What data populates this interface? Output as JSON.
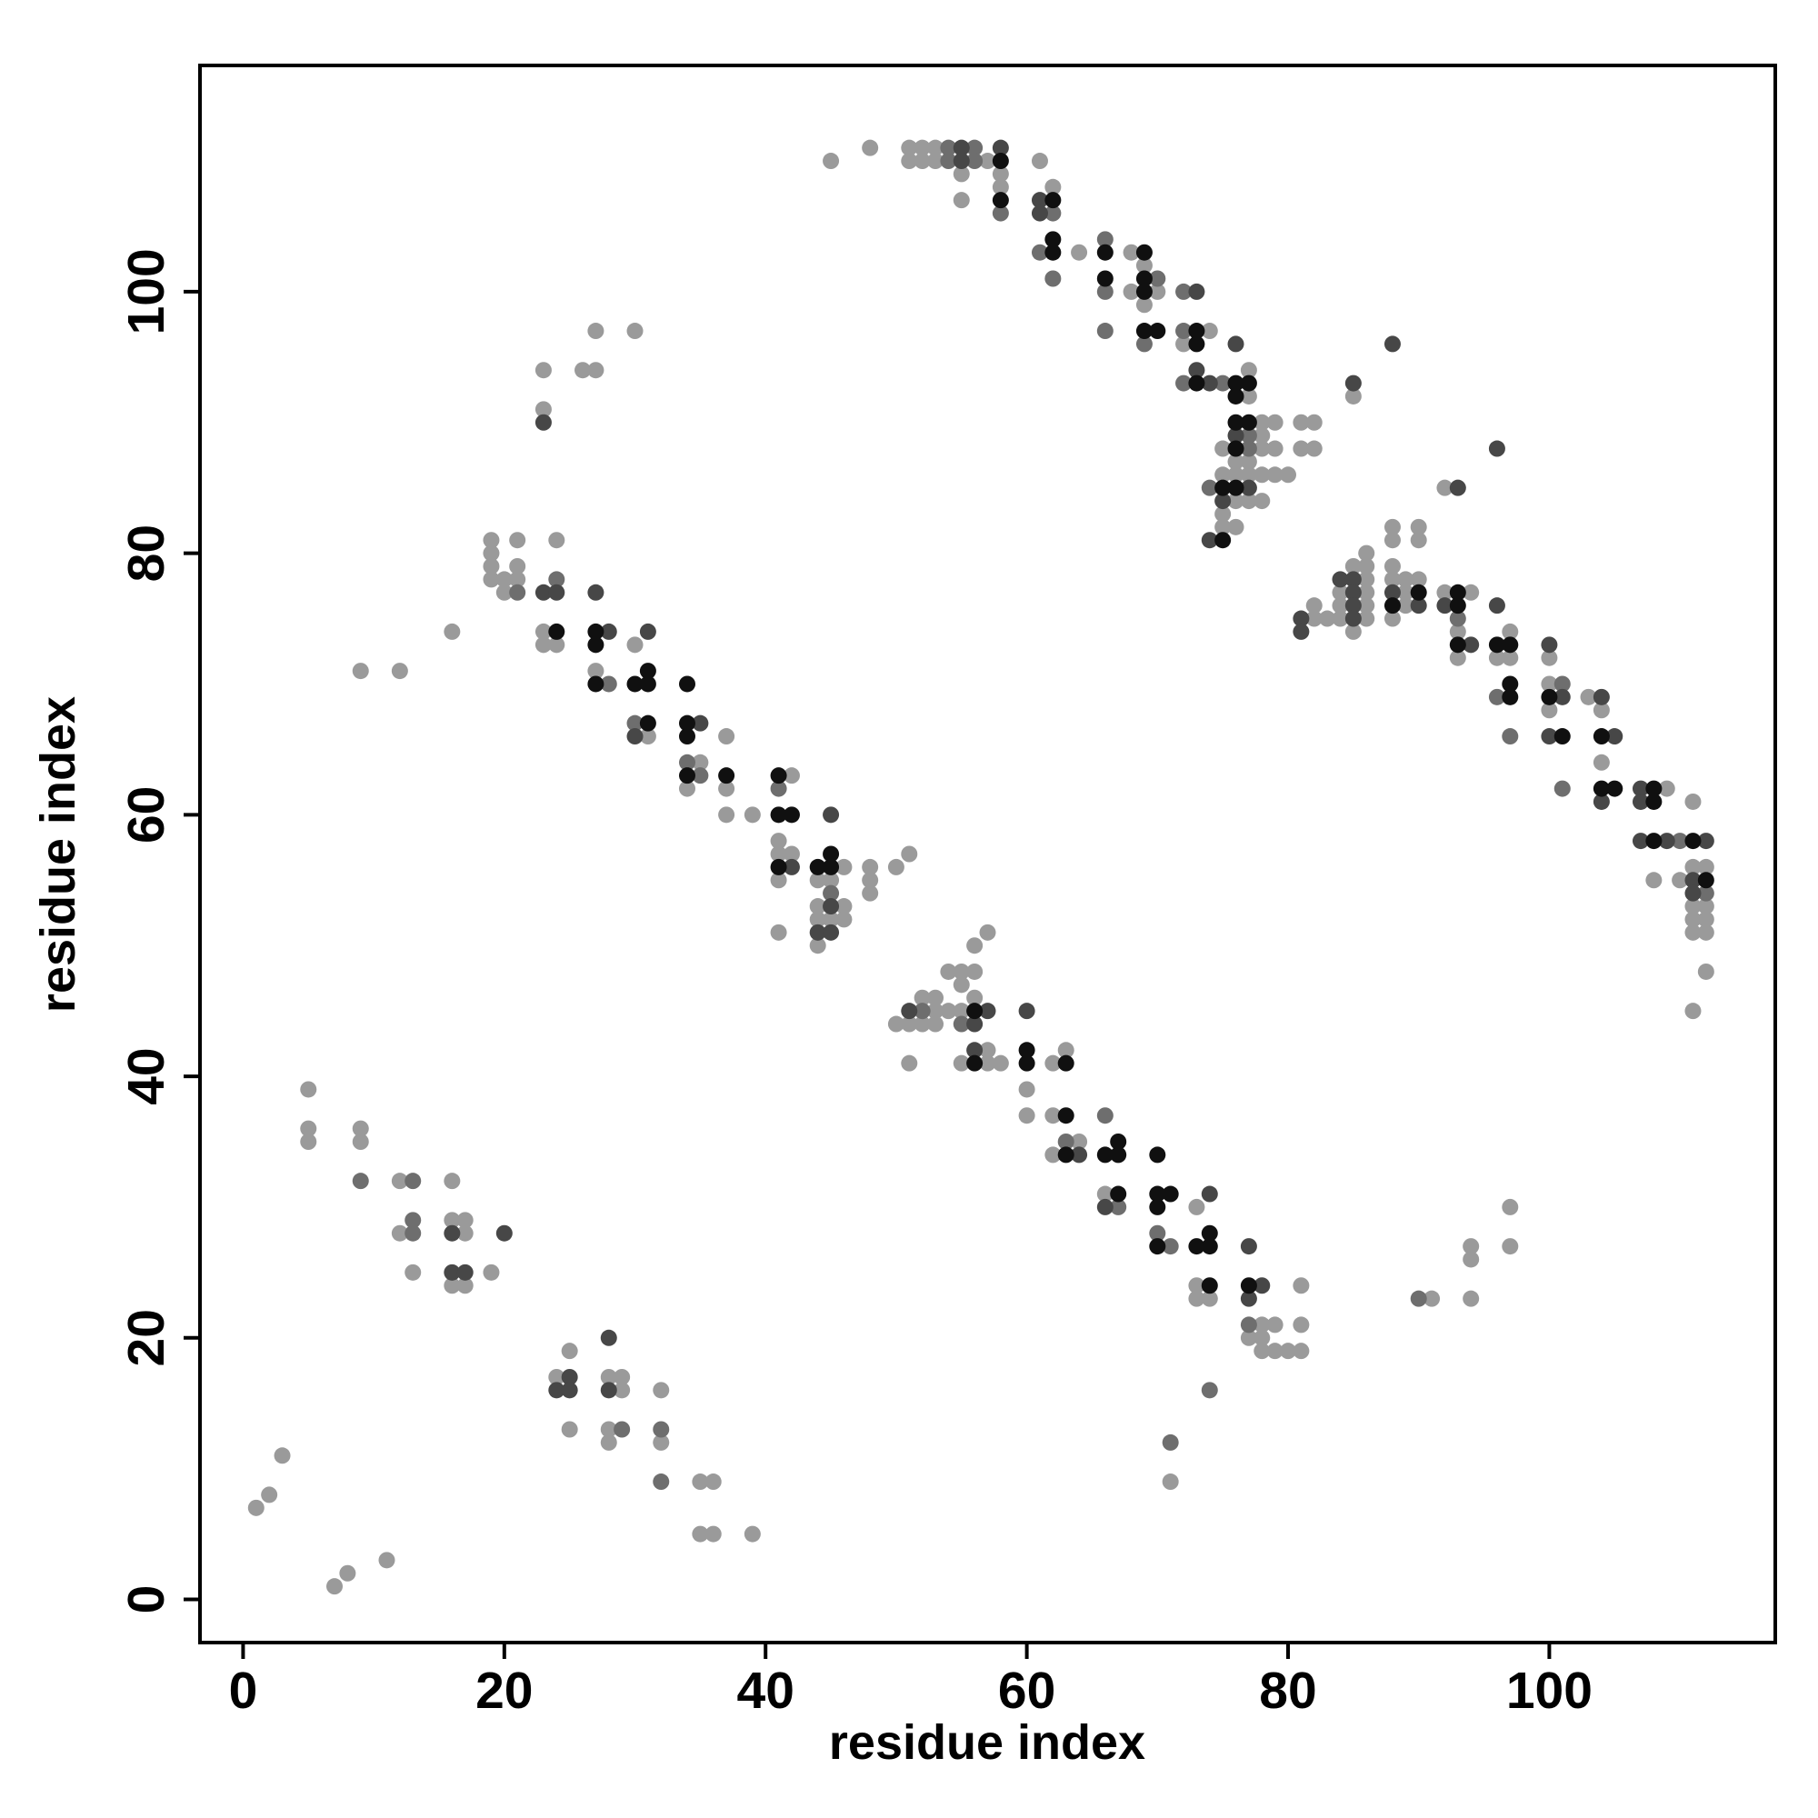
{
  "chart_data": {
    "type": "scatter",
    "xlabel": "residue index",
    "ylabel": "residue index",
    "xlim": [
      -3.3,
      117.3
    ],
    "ylim": [
      -3.3,
      117.3
    ],
    "xticks": [
      0,
      20,
      40,
      60,
      80,
      100
    ],
    "yticks": [
      0,
      20,
      40,
      60,
      80,
      100
    ],
    "series": [
      {
        "color": "#9a9a9a",
        "x": [
          1,
          2,
          3,
          7,
          8,
          11,
          5,
          5,
          5,
          9,
          9,
          12,
          12,
          13,
          16,
          16,
          17,
          17,
          16,
          17,
          19,
          24,
          25,
          25,
          28,
          29,
          28,
          28,
          32,
          32,
          35,
          36,
          35,
          36,
          39,
          29,
          9,
          12,
          16,
          19,
          19,
          19,
          19,
          20,
          20,
          21,
          21,
          21,
          24,
          23,
          23,
          24,
          27,
          30,
          31,
          35,
          34,
          37,
          37,
          37,
          39,
          42,
          41,
          41,
          42,
          41,
          41,
          44,
          45,
          44,
          46,
          44,
          45,
          46,
          44,
          46,
          48,
          48,
          48,
          50,
          51,
          23,
          23,
          26,
          27,
          27,
          30,
          45,
          48,
          51,
          51,
          52,
          52,
          53,
          53,
          55,
          55,
          57,
          58,
          58,
          61,
          62,
          64,
          68,
          68,
          69,
          70,
          69,
          72,
          74,
          77,
          77,
          75,
          78,
          79,
          78,
          78,
          79,
          76,
          77,
          75,
          76,
          77,
          78,
          79,
          80,
          76,
          77,
          78,
          75,
          75,
          76,
          81,
          82,
          81,
          82,
          85,
          50,
          51,
          52,
          52,
          53,
          53,
          53,
          54,
          54,
          55,
          55,
          55,
          56,
          56,
          56,
          57,
          51,
          55,
          57,
          57,
          58,
          60,
          60,
          62,
          63,
          62,
          64,
          62,
          66,
          71,
          73,
          73,
          73,
          74,
          78,
          79,
          77,
          78,
          78,
          79,
          80,
          81,
          81,
          81,
          91,
          94,
          94,
          94,
          97,
          97,
          82,
          82,
          83,
          84,
          84,
          84,
          85,
          85,
          86,
          86,
          86,
          86,
          86,
          86,
          88,
          88,
          88,
          88,
          88,
          89,
          89,
          89,
          90,
          90,
          90,
          92,
          92,
          93,
          93,
          94,
          96,
          97,
          97,
          100,
          100,
          100,
          103,
          104,
          104,
          109,
          111,
          108,
          110,
          111,
          112,
          111,
          112,
          111,
          112,
          111,
          112,
          112,
          111
        ],
        "y": [
          7,
          8,
          11,
          1,
          2,
          3,
          39,
          36,
          35,
          36,
          35,
          32,
          28,
          25,
          32,
          29,
          29,
          28,
          24,
          24,
          25,
          17,
          19,
          13,
          17,
          17,
          13,
          12,
          16,
          12,
          9,
          9,
          5,
          5,
          5,
          16,
          71,
          71,
          74,
          81,
          80,
          79,
          78,
          78,
          77,
          81,
          79,
          78,
          81,
          74,
          73,
          73,
          71,
          73,
          66,
          64,
          62,
          66,
          62,
          60,
          60,
          63,
          58,
          57,
          57,
          55,
          51,
          55,
          55,
          53,
          53,
          52,
          52,
          52,
          50,
          56,
          56,
          55,
          54,
          56,
          57,
          94,
          91,
          94,
          94,
          97,
          97,
          110,
          111,
          111,
          110,
          111,
          110,
          111,
          110,
          109,
          107,
          110,
          109,
          108,
          110,
          108,
          103,
          103,
          100,
          102,
          100,
          99,
          96,
          97,
          94,
          92,
          88,
          90,
          90,
          89,
          88,
          88,
          87,
          87,
          86,
          86,
          86,
          86,
          86,
          86,
          84,
          84,
          84,
          83,
          82,
          82,
          90,
          90,
          88,
          88,
          92,
          44,
          44,
          44,
          46,
          46,
          45,
          44,
          48,
          45,
          48,
          47,
          45,
          48,
          46,
          50,
          51,
          41,
          41,
          42,
          41,
          41,
          39,
          37,
          41,
          42,
          37,
          35,
          34,
          31,
          9,
          30,
          24,
          23,
          23,
          21,
          21,
          20,
          20,
          19,
          19,
          19,
          19,
          21,
          24,
          23,
          27,
          26,
          23,
          30,
          27,
          76,
          75,
          75,
          77,
          76,
          75,
          79,
          74,
          80,
          79,
          78,
          77,
          76,
          75,
          82,
          81,
          79,
          78,
          75,
          78,
          77,
          76,
          82,
          81,
          78,
          85,
          77,
          74,
          72,
          77,
          72,
          72,
          74,
          72,
          70,
          68,
          69,
          68,
          64,
          62,
          61,
          55,
          55,
          56,
          56,
          53,
          53,
          52,
          52,
          51,
          51,
          48,
          45
        ]
      },
      {
        "color": "#6e6e6e",
        "x": [
          9,
          13,
          13,
          13,
          29,
          32,
          32,
          21,
          24,
          28,
          30,
          34,
          35,
          41,
          45,
          54,
          54,
          56,
          56,
          58,
          62,
          61,
          62,
          66,
          66,
          66,
          70,
          69,
          72,
          72,
          72,
          75,
          77,
          77,
          74,
          52,
          55,
          63,
          66,
          67,
          70,
          71,
          71,
          74,
          77,
          90,
          93,
          96,
          97,
          101,
          101,
          110,
          112
        ],
        "y": [
          32,
          32,
          29,
          28,
          13,
          13,
          9,
          77,
          78,
          70,
          67,
          64,
          63,
          62,
          54,
          111,
          110,
          111,
          110,
          106,
          106,
          103,
          101,
          104,
          100,
          97,
          101,
          96,
          100,
          97,
          93,
          93,
          89,
          88,
          85,
          45,
          44,
          35,
          37,
          30,
          28,
          27,
          12,
          16,
          21,
          23,
          75,
          69,
          66,
          70,
          62,
          58,
          54
        ]
      },
      {
        "color": "#474747",
        "x": [
          16,
          16,
          17,
          20,
          25,
          24,
          25,
          28,
          28,
          23,
          24,
          27,
          28,
          31,
          30,
          35,
          42,
          45,
          44,
          45,
          45,
          23,
          55,
          55,
          58,
          61,
          61,
          73,
          73,
          74,
          76,
          76,
          77,
          75,
          74,
          85,
          88,
          51,
          57,
          56,
          56,
          60,
          64,
          66,
          74,
          77,
          78,
          77,
          81,
          81,
          84,
          85,
          85,
          85,
          85,
          88,
          90,
          93,
          92,
          94,
          96,
          96,
          100,
          101,
          100,
          104,
          105,
          104,
          107,
          107,
          107,
          109,
          112,
          111,
          111
        ],
        "y": [
          28,
          25,
          25,
          28,
          17,
          16,
          16,
          20,
          16,
          77,
          77,
          77,
          74,
          74,
          66,
          67,
          56,
          53,
          51,
          51,
          60,
          90,
          111,
          110,
          111,
          107,
          106,
          100,
          94,
          93,
          96,
          89,
          85,
          84,
          81,
          93,
          96,
          45,
          45,
          44,
          42,
          45,
          34,
          30,
          31,
          27,
          24,
          23,
          75,
          74,
          78,
          78,
          77,
          76,
          75,
          77,
          76,
          85,
          76,
          73,
          88,
          76,
          73,
          69,
          66,
          69,
          66,
          61,
          62,
          61,
          58,
          58,
          58,
          55,
          54
        ]
      },
      {
        "color": "#101010",
        "x": [
          24,
          27,
          27,
          27,
          30,
          31,
          31,
          31,
          34,
          34,
          34,
          34,
          37,
          41,
          41,
          42,
          41,
          44,
          45,
          45,
          58,
          58,
          62,
          62,
          62,
          66,
          66,
          69,
          69,
          69,
          69,
          70,
          73,
          73,
          73,
          76,
          77,
          76,
          76,
          77,
          76,
          75,
          76,
          75,
          56,
          56,
          60,
          60,
          63,
          63,
          63,
          66,
          67,
          67,
          67,
          70,
          70,
          71,
          70,
          70,
          73,
          74,
          74,
          74,
          77,
          88,
          90,
          93,
          93,
          93,
          96,
          97,
          97,
          97,
          100,
          101,
          104,
          104,
          105,
          108,
          108,
          108,
          111,
          112
        ],
        "y": [
          74,
          74,
          73,
          70,
          70,
          71,
          70,
          67,
          70,
          67,
          66,
          63,
          63,
          63,
          60,
          60,
          56,
          56,
          57,
          56,
          110,
          107,
          107,
          104,
          103,
          103,
          101,
          103,
          101,
          100,
          97,
          97,
          97,
          96,
          93,
          93,
          93,
          92,
          90,
          90,
          88,
          85,
          85,
          81,
          45,
          41,
          42,
          41,
          41,
          37,
          34,
          34,
          35,
          34,
          31,
          34,
          31,
          31,
          30,
          27,
          27,
          28,
          27,
          24,
          24,
          76,
          77,
          77,
          76,
          73,
          73,
          73,
          70,
          69,
          69,
          66,
          66,
          62,
          62,
          62,
          61,
          58,
          58,
          55
        ]
      }
    ]
  }
}
